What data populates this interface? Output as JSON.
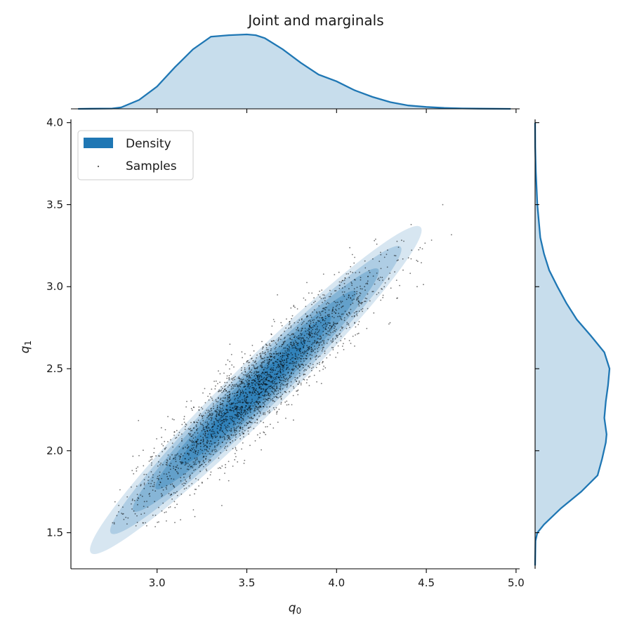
{
  "chart_data": {
    "type": "scatter",
    "title": "Joint and marginals",
    "xlabel": "q",
    "xlabel_sub": "0",
    "ylabel": "q",
    "ylabel_sub": "1",
    "xlim": [
      2.52,
      5.02
    ],
    "ylim": [
      1.28,
      4.02
    ],
    "x_ticks": [
      3.0,
      3.5,
      4.0,
      4.5,
      5.0
    ],
    "x_tick_labels": [
      "3.0",
      "3.5",
      "4.0",
      "4.5",
      "5.0"
    ],
    "y_ticks": [
      1.5,
      2.0,
      2.5,
      3.0,
      3.5,
      4.0
    ],
    "y_tick_labels": [
      "1.5",
      "2.0",
      "2.5",
      "3.0",
      "3.5",
      "4.0"
    ],
    "grid": false,
    "legend_position": "top-left",
    "legend": [
      {
        "label": "Density",
        "kind": "patch",
        "color": "#1f77b4"
      },
      {
        "label": "Samples",
        "kind": "marker",
        "color": "#555555"
      }
    ],
    "joint": {
      "distribution": "correlated bivariate, elongated along diagonal",
      "center": [
        3.55,
        2.37
      ],
      "sd": [
        0.33,
        0.35
      ],
      "correlation": 0.93,
      "approx_range_x": [
        2.75,
        4.82
      ],
      "approx_range_y": [
        1.53,
        3.77
      ],
      "density_color": "#1f77b4",
      "sample_color": "#000000"
    },
    "marginal_x": {
      "x": [
        2.56,
        2.75,
        2.8,
        2.9,
        3.0,
        3.1,
        3.2,
        3.3,
        3.4,
        3.5,
        3.55,
        3.6,
        3.7,
        3.8,
        3.9,
        4.0,
        4.1,
        4.2,
        4.3,
        4.4,
        4.5,
        4.6,
        4.7,
        4.8,
        4.97
      ],
      "density": [
        0.0,
        0.005,
        0.02,
        0.12,
        0.3,
        0.56,
        0.8,
        0.97,
        0.99,
        1.0,
        0.99,
        0.95,
        0.8,
        0.62,
        0.46,
        0.37,
        0.25,
        0.16,
        0.09,
        0.045,
        0.025,
        0.012,
        0.006,
        0.003,
        0.0
      ]
    },
    "marginal_y": {
      "y": [
        1.3,
        1.45,
        1.5,
        1.55,
        1.65,
        1.75,
        1.85,
        1.95,
        2.05,
        2.1,
        2.2,
        2.3,
        2.4,
        2.5,
        2.6,
        2.7,
        2.8,
        2.9,
        3.0,
        3.1,
        3.2,
        3.3,
        3.5,
        3.7,
        3.85,
        4.0
      ],
      "density": [
        0.0,
        0.006,
        0.03,
        0.12,
        0.35,
        0.62,
        0.84,
        0.9,
        0.95,
        0.96,
        0.93,
        0.95,
        0.98,
        1.0,
        0.93,
        0.75,
        0.56,
        0.42,
        0.3,
        0.19,
        0.12,
        0.07,
        0.03,
        0.01,
        0.002,
        0.0
      ]
    }
  }
}
